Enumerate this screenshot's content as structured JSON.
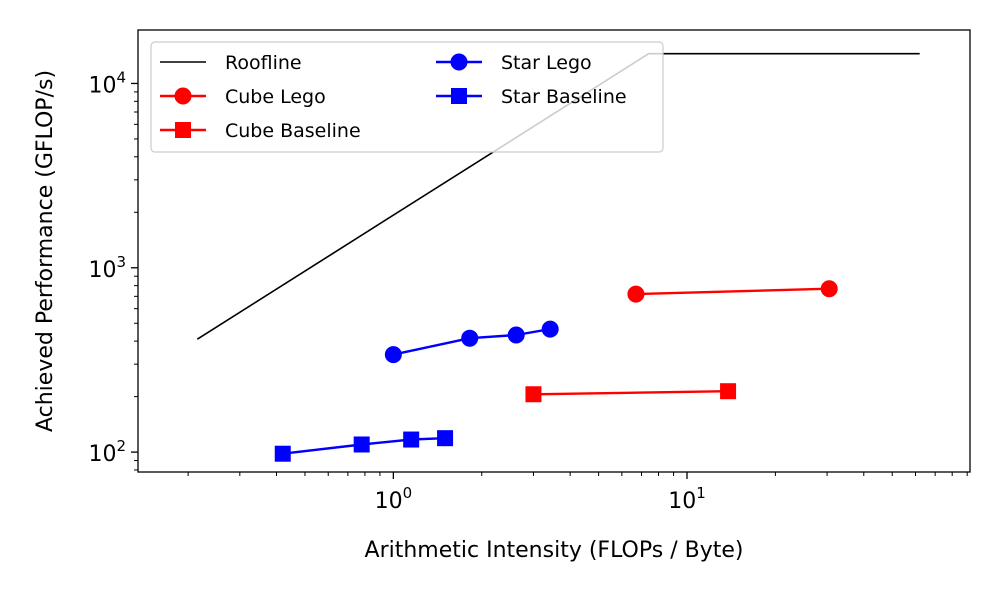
{
  "chart_data": {
    "type": "line",
    "xscale": "log",
    "yscale": "log",
    "xlabel": "Arithmetic Intensity (FLOPs / Byte)",
    "ylabel": "Achieved Performance (GFLOP/s)",
    "xlim": [
      0.135,
      92
    ],
    "ylim": [
      78,
      19500
    ],
    "x_major_ticks": [
      {
        "value": 1,
        "base": "10",
        "exp": "0"
      },
      {
        "value": 10,
        "base": "10",
        "exp": "1"
      }
    ],
    "y_major_ticks": [
      {
        "value": 100,
        "base": "10",
        "exp": "2"
      },
      {
        "value": 1000,
        "base": "10",
        "exp": "3"
      },
      {
        "value": 10000,
        "base": "10",
        "exp": "4"
      }
    ],
    "legend_position": "upper-left",
    "series": [
      {
        "name": "Roofline",
        "color": "#000000",
        "marker": "none",
        "x": [
          0.215,
          7.4,
          62
        ],
        "y": [
          410,
          14500,
          14500
        ]
      },
      {
        "name": "Cube Lego",
        "color": "#ff0000",
        "marker": "circle",
        "x": [
          6.7,
          30.5
        ],
        "y": [
          720,
          770
        ]
      },
      {
        "name": "Cube Baseline",
        "color": "#ff0000",
        "marker": "square",
        "x": [
          3.0,
          13.8
        ],
        "y": [
          206,
          214
        ]
      },
      {
        "name": "Star Lego",
        "color": "#0000ff",
        "marker": "circle",
        "x": [
          1.0,
          1.82,
          2.62,
          3.42
        ],
        "y": [
          338,
          415,
          432,
          465
        ]
      },
      {
        "name": "Star Baseline",
        "color": "#0000ff",
        "marker": "square",
        "x": [
          0.42,
          0.78,
          1.15,
          1.5
        ],
        "y": [
          98,
          110,
          117,
          119
        ]
      }
    ]
  }
}
